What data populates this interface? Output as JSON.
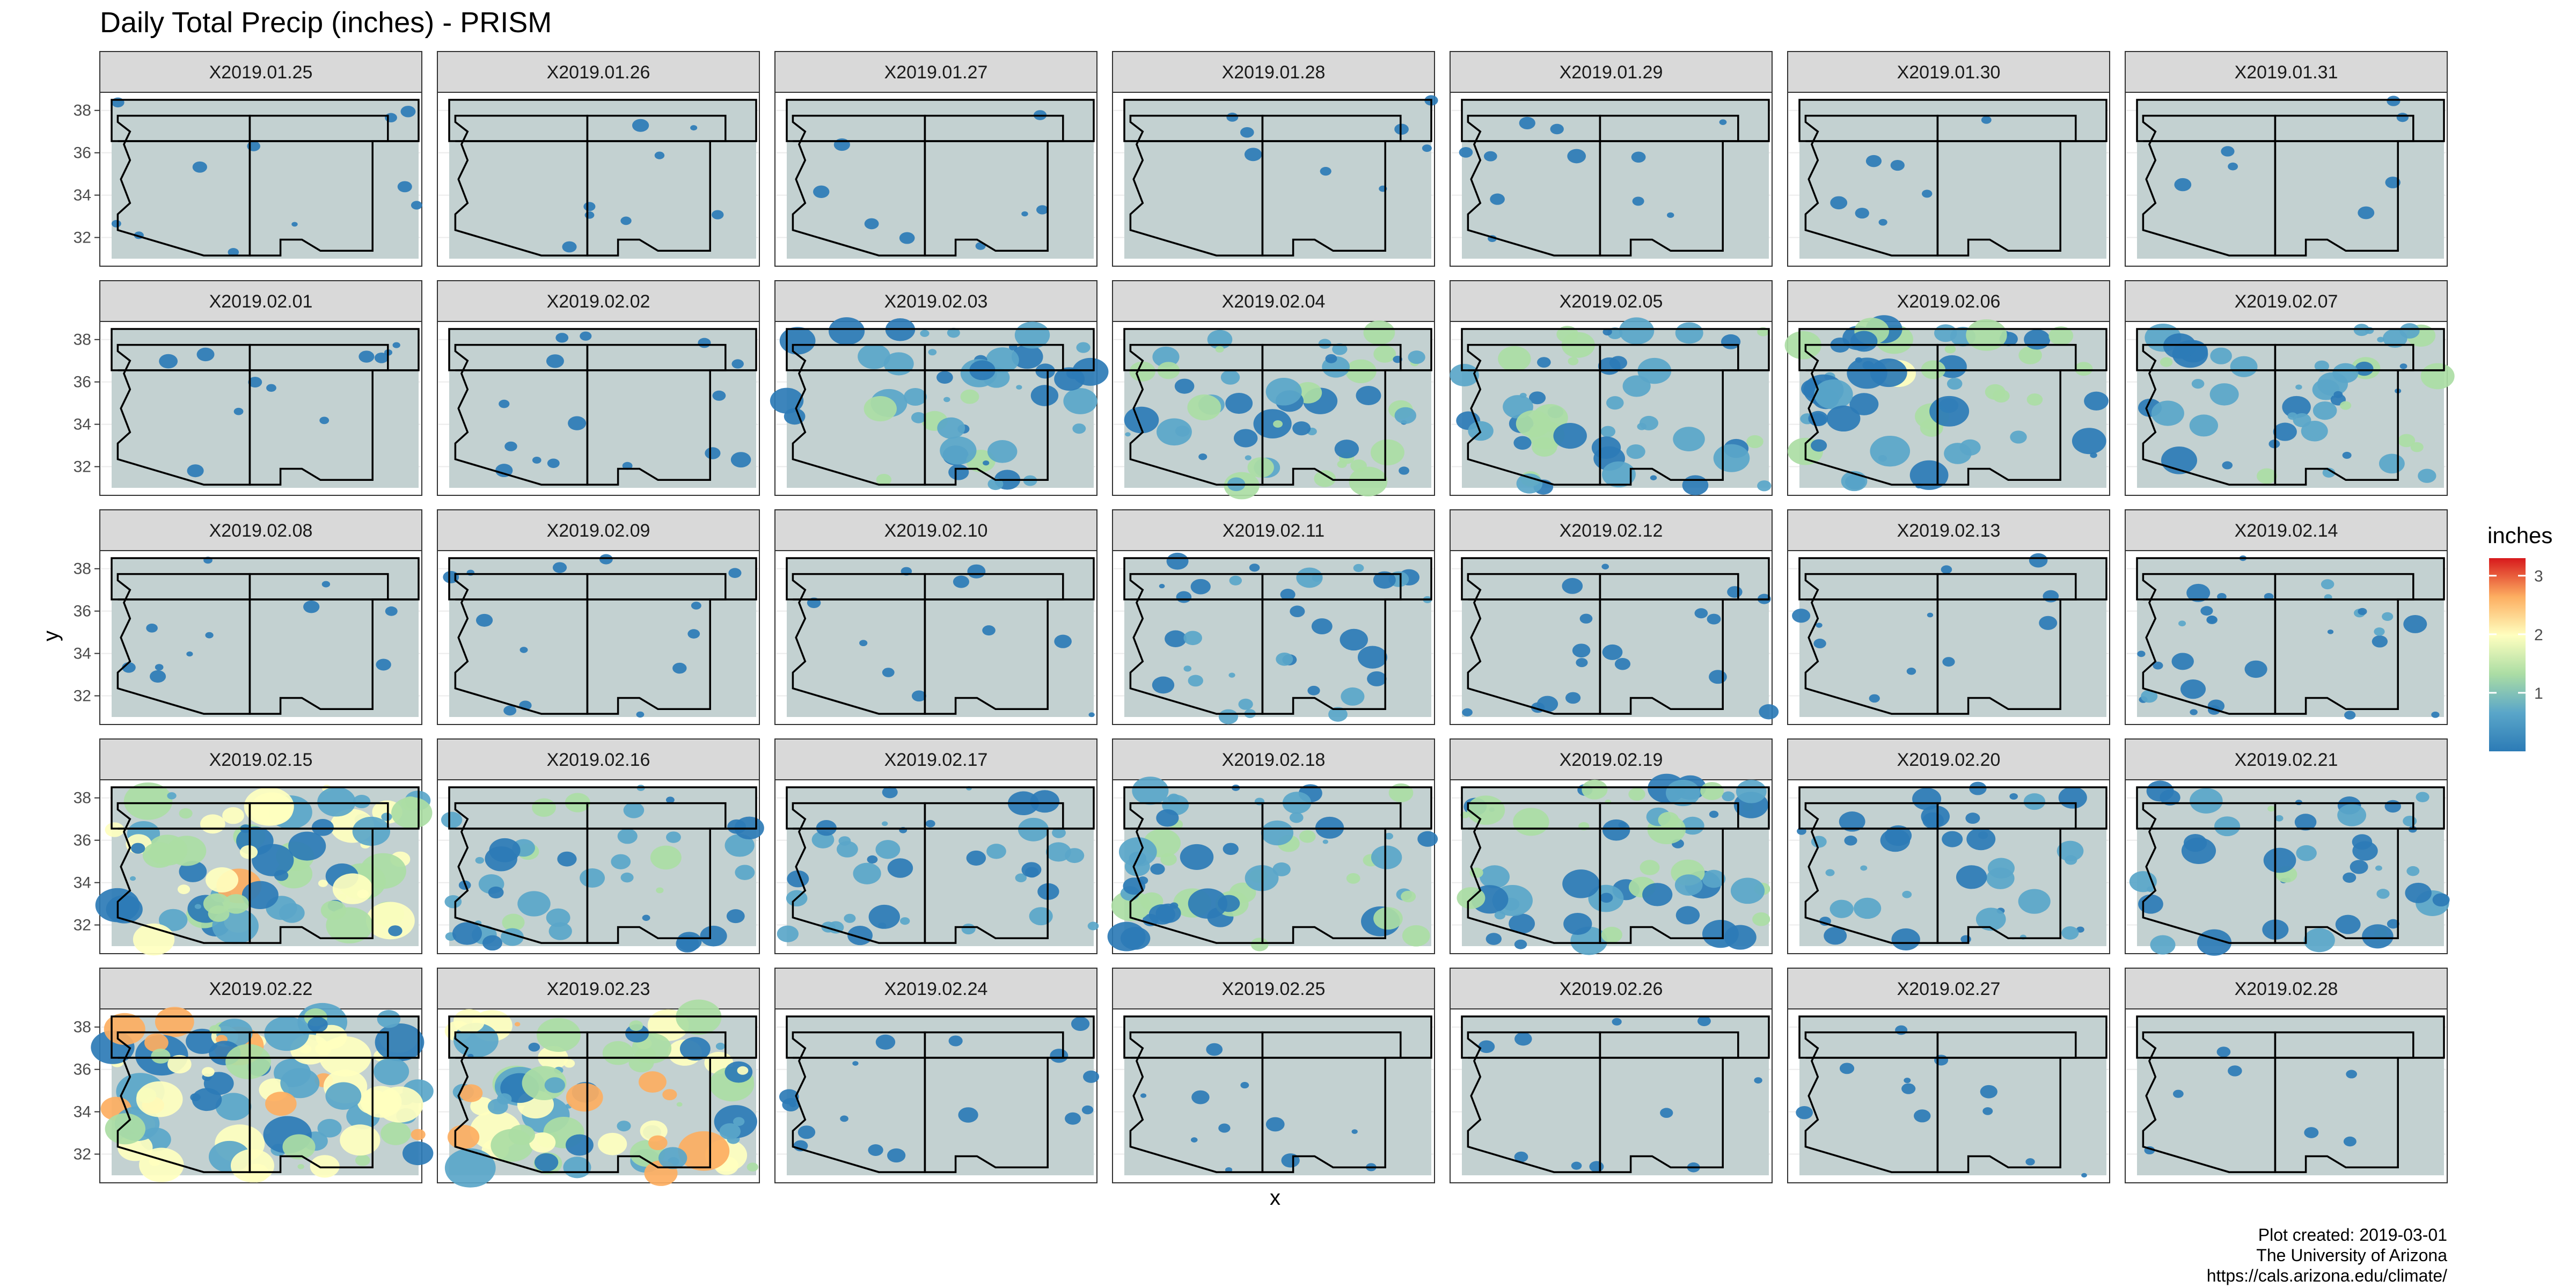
{
  "colors": {
    "panel_background": "#ffffff",
    "panel_border": "#333333",
    "strip_fill": "#d9d9d9",
    "land_fill": "#c3d1d1",
    "grid": "#ebebeb",
    "state_outline": "#000000",
    "precip_scale": [
      "#2c7bb6",
      "#5aa6c9",
      "#abdda4",
      "#ffffbf",
      "#fdae61",
      "#d7191c"
    ]
  },
  "chart_data": {
    "type": "heatmap",
    "title": "Daily Total Precip (inches) - PRISM",
    "xlabel": "x",
    "ylabel": "y",
    "y_ticks": [
      "32",
      "34",
      "36",
      "38"
    ],
    "ylim": [
      31,
      38.5
    ],
    "grid": true,
    "facet_layout": {
      "rows": 5,
      "cols": 7
    },
    "legend": {
      "title": "inches",
      "position": "right",
      "range": [
        0,
        3.3
      ],
      "ticks": [
        "1",
        "2",
        "3"
      ],
      "tick_values": [
        1,
        2,
        3
      ]
    },
    "panels": [
      {
        "label": "X2019.01.25",
        "intensity": 0.05
      },
      {
        "label": "X2019.01.26",
        "intensity": 0.02
      },
      {
        "label": "X2019.01.27",
        "intensity": 0.02
      },
      {
        "label": "X2019.01.28",
        "intensity": 0.02
      },
      {
        "label": "X2019.01.29",
        "intensity": 0.06
      },
      {
        "label": "X2019.01.30",
        "intensity": 0.01
      },
      {
        "label": "X2019.01.31",
        "intensity": 0.01
      },
      {
        "label": "X2019.02.01",
        "intensity": 0.06
      },
      {
        "label": "X2019.02.02",
        "intensity": 0.1
      },
      {
        "label": "X2019.02.03",
        "intensity": 0.45
      },
      {
        "label": "X2019.02.04",
        "intensity": 0.5
      },
      {
        "label": "X2019.02.05",
        "intensity": 0.45
      },
      {
        "label": "X2019.02.06",
        "intensity": 0.55
      },
      {
        "label": "X2019.02.07",
        "intensity": 0.45
      },
      {
        "label": "X2019.02.08",
        "intensity": 0.05
      },
      {
        "label": "X2019.02.09",
        "intensity": 0.08
      },
      {
        "label": "X2019.02.10",
        "intensity": 0.04
      },
      {
        "label": "X2019.02.11",
        "intensity": 0.3
      },
      {
        "label": "X2019.02.12",
        "intensity": 0.12
      },
      {
        "label": "X2019.02.13",
        "intensity": 0.06
      },
      {
        "label": "X2019.02.14",
        "intensity": 0.25
      },
      {
        "label": "X2019.02.15",
        "intensity": 0.75
      },
      {
        "label": "X2019.02.16",
        "intensity": 0.4
      },
      {
        "label": "X2019.02.17",
        "intensity": 0.35
      },
      {
        "label": "X2019.02.18",
        "intensity": 0.55
      },
      {
        "label": "X2019.02.19",
        "intensity": 0.55
      },
      {
        "label": "X2019.02.20",
        "intensity": 0.35
      },
      {
        "label": "X2019.02.21",
        "intensity": 0.4
      },
      {
        "label": "X2019.02.22",
        "intensity": 0.85
      },
      {
        "label": "X2019.02.23",
        "intensity": 0.8
      },
      {
        "label": "X2019.02.24",
        "intensity": 0.12
      },
      {
        "label": "X2019.02.25",
        "intensity": 0.06
      },
      {
        "label": "X2019.02.26",
        "intensity": 0.04
      },
      {
        "label": "X2019.02.27",
        "intensity": 0.05
      },
      {
        "label": "X2019.02.28",
        "intensity": 0.01
      }
    ]
  },
  "caption": {
    "line1": "Plot created: 2019-03-01",
    "line2": "The University of Arizona",
    "line3": "https://cals.arizona.edu/climate/"
  }
}
